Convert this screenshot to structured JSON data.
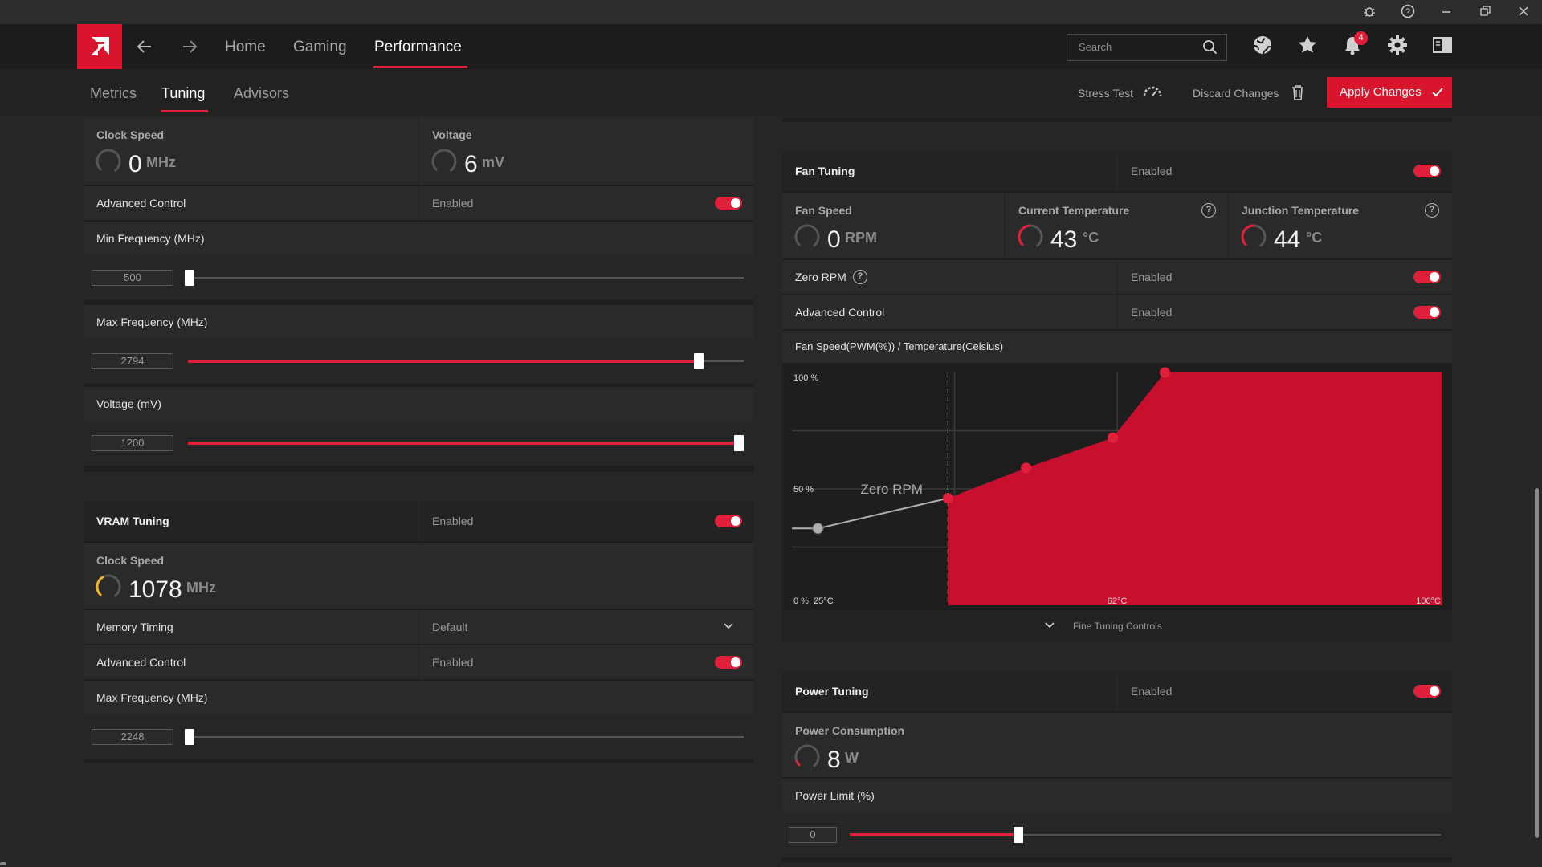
{
  "titlebar": {
    "icons": [
      "bug-icon",
      "help-icon",
      "minimize-icon",
      "restore-icon",
      "close-icon"
    ]
  },
  "nav": {
    "links": [
      "Home",
      "Gaming",
      "Performance"
    ],
    "search_placeholder": "Search",
    "notification_count": "4"
  },
  "subnav": {
    "tabs": [
      "Metrics",
      "Tuning",
      "Advisors"
    ],
    "stress_test": "Stress Test",
    "discard": "Discard Changes",
    "apply": "Apply Changes"
  },
  "gpu": {
    "clock_label": "Clock Speed",
    "clock_value": "0",
    "clock_unit": "MHz",
    "voltage_label": "Voltage",
    "voltage_value": "6",
    "voltage_unit": "mV",
    "advanced_label": "Advanced Control",
    "advanced_state": "Enabled",
    "min_freq_label": "Min Frequency (MHz)",
    "min_freq_value": "500",
    "min_freq_fraction": 0.0,
    "max_freq_label": "Max Frequency (MHz)",
    "max_freq_value": "2794",
    "max_freq_fraction": 0.92,
    "voltage_slider_label": "Voltage (mV)",
    "voltage_slider_value": "1200",
    "voltage_slider_fraction": 1.0
  },
  "vram": {
    "title": "VRAM Tuning",
    "state": "Enabled",
    "clock_label": "Clock Speed",
    "clock_value": "1078",
    "clock_unit": "MHz",
    "timing_label": "Memory Timing",
    "timing_value": "Default",
    "advanced_label": "Advanced Control",
    "advanced_state": "Enabled",
    "max_freq_label": "Max Frequency (MHz)",
    "max_freq_value": "2248",
    "max_freq_fraction": 0.0
  },
  "fan": {
    "title": "Fan Tuning",
    "state": "Enabled",
    "speed_label": "Fan Speed",
    "speed_value": "0",
    "speed_unit": "RPM",
    "current_temp_label": "Current Temperature",
    "current_temp_value": "43",
    "current_temp_unit": "°C",
    "junction_temp_label": "Junction Temperature",
    "junction_temp_value": "44",
    "junction_temp_unit": "°C",
    "zero_rpm_label": "Zero RPM",
    "zero_rpm_state": "Enabled",
    "advanced_label": "Advanced Control",
    "advanced_state": "Enabled",
    "curve_title": "Fan Speed(PWM(%)) / Temperature(Celsius)",
    "fine_tuning": "Fine Tuning Controls"
  },
  "chart_data": {
    "type": "area",
    "title": "Fan Speed(PWM(%)) / Temperature(Celsius)",
    "y_labels": [
      "100 %",
      "50 %",
      "0 %, 25°C"
    ],
    "x_labels": [
      "62°C",
      "100°C"
    ],
    "annotation": "Zero RPM",
    "xlim": [
      25,
      100
    ],
    "ylim": [
      0,
      100
    ],
    "zero_rpm_temp": 43,
    "points": [
      {
        "x": 28,
        "y": 33
      },
      {
        "x": 43,
        "y": 46
      },
      {
        "x": 52,
        "y": 59
      },
      {
        "x": 62,
        "y": 72
      },
      {
        "x": 68,
        "y": 100
      }
    ],
    "colors": {
      "fill": "#c8102e",
      "point": "#e0203a",
      "muted_point": "#b0b0b0"
    }
  },
  "power": {
    "title": "Power Tuning",
    "state": "Enabled",
    "consumption_label": "Power Consumption",
    "consumption_value": "8",
    "consumption_unit": "W",
    "limit_label": "Power Limit (%)",
    "limit_value": "0",
    "limit_fraction": 0.29
  }
}
